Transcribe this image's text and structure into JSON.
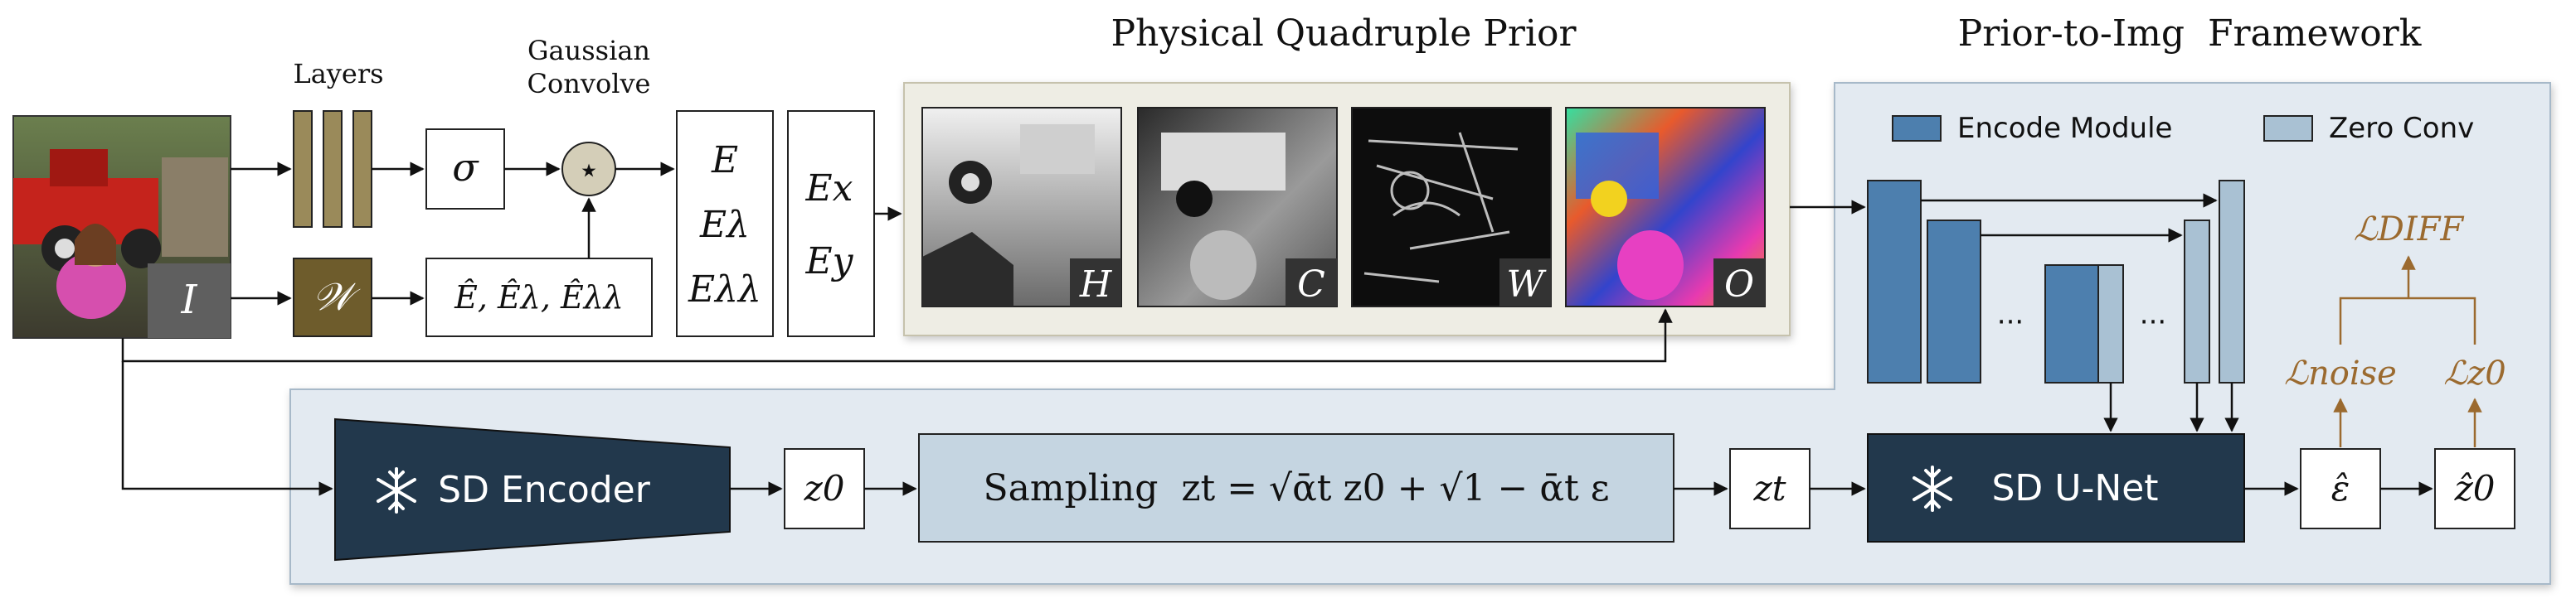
{
  "title_prior": "Physical Quadruple Prior",
  "title_framework": "Prior-to-Img  Framework",
  "layers_label": "Layers",
  "gaussian_label_1": "Gaussian",
  "gaussian_label_2": "Convolve",
  "input_symbol": "I",
  "w_symbol": "𝒲",
  "sigma_symbol": "σ",
  "convolve_symbol": "⋆",
  "e_terms": [
    "E",
    "Eλ",
    "Eλλ"
  ],
  "ehat_terms": "Ê, Êλ, Êλλ",
  "exy_terms": [
    "Ex",
    "Ey"
  ],
  "prior_maps": [
    "H",
    "C",
    "W",
    "O"
  ],
  "legend": {
    "encode": "Encode Module",
    "zero": "Zero Conv"
  },
  "ellipsis": "···",
  "sd_encoder": "SD Encoder",
  "z0": "z0",
  "sampling": "Sampling  zt = √ᾱt z0 + √1 − ᾱt ε",
  "zt": "zt",
  "sd_unet": "SD U-Net",
  "eps_hat": "ε̂",
  "z0_hat": "ẑ0",
  "loss_diff": "ℒDIFF",
  "loss_noise": "ℒnoise",
  "loss_z0": "ℒz0",
  "colors": {
    "panel": "#e3eaf1",
    "prior_panel": "#eeede4",
    "encode": "#4d7fae",
    "zero": "#a9c1d3",
    "dark": "#22384c",
    "layers": "#9a8a5a",
    "w_box": "#6e5c2c",
    "loss": "#9b6a2f"
  }
}
